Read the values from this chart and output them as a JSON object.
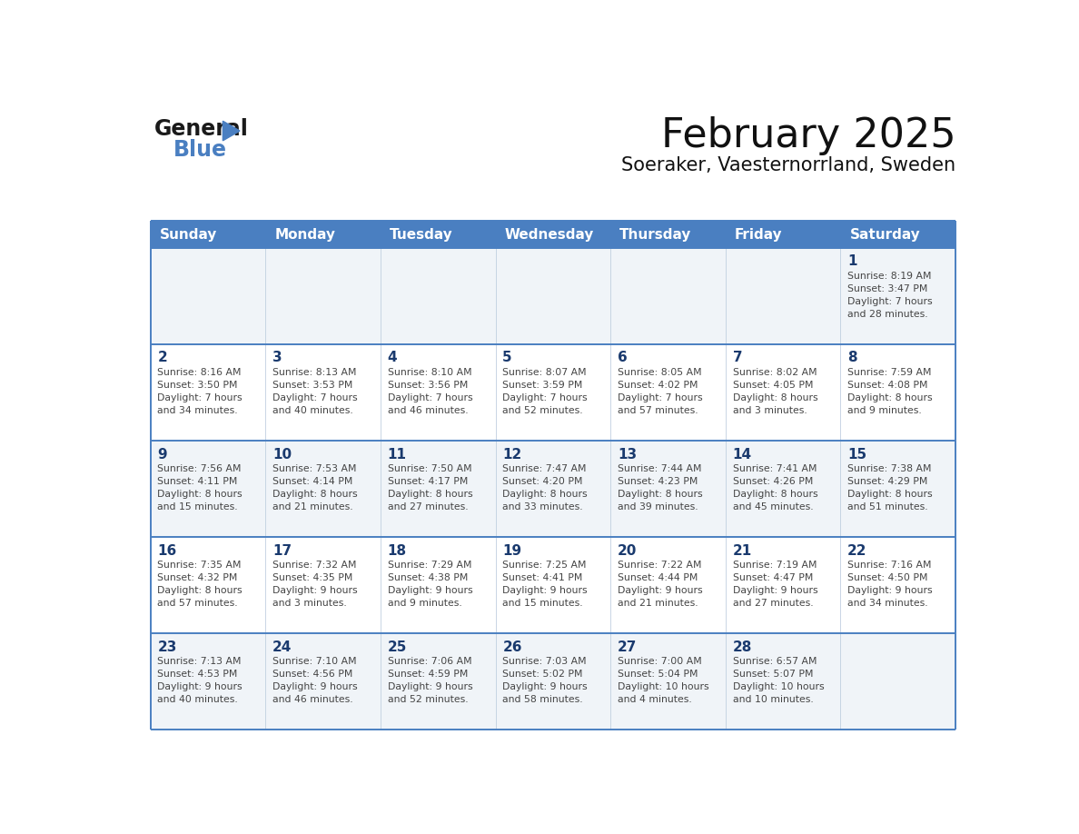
{
  "title": "February 2025",
  "subtitle": "Soeraker, Vaesternorrland, Sweden",
  "days_of_week": [
    "Sunday",
    "Monday",
    "Tuesday",
    "Wednesday",
    "Thursday",
    "Friday",
    "Saturday"
  ],
  "header_bg": "#4a7fc1",
  "header_text": "#FFFFFF",
  "row_bg_light": "#f0f4f8",
  "row_bg_white": "#FFFFFF",
  "text_color": "#444444",
  "day_number_color": "#1a3a6e",
  "border_color": "#4a7fc1",
  "cell_divider_color": "#c0cfe0",
  "logo_color_general": "#1a1a1a",
  "logo_color_blue": "#4a7fc1",
  "logo_triangle_color": "#4a7fc1",
  "calendar": [
    [
      {
        "day": null,
        "info": ""
      },
      {
        "day": null,
        "info": ""
      },
      {
        "day": null,
        "info": ""
      },
      {
        "day": null,
        "info": ""
      },
      {
        "day": null,
        "info": ""
      },
      {
        "day": null,
        "info": ""
      },
      {
        "day": 1,
        "info": "Sunrise: 8:19 AM\nSunset: 3:47 PM\nDaylight: 7 hours\nand 28 minutes."
      }
    ],
    [
      {
        "day": 2,
        "info": "Sunrise: 8:16 AM\nSunset: 3:50 PM\nDaylight: 7 hours\nand 34 minutes."
      },
      {
        "day": 3,
        "info": "Sunrise: 8:13 AM\nSunset: 3:53 PM\nDaylight: 7 hours\nand 40 minutes."
      },
      {
        "day": 4,
        "info": "Sunrise: 8:10 AM\nSunset: 3:56 PM\nDaylight: 7 hours\nand 46 minutes."
      },
      {
        "day": 5,
        "info": "Sunrise: 8:07 AM\nSunset: 3:59 PM\nDaylight: 7 hours\nand 52 minutes."
      },
      {
        "day": 6,
        "info": "Sunrise: 8:05 AM\nSunset: 4:02 PM\nDaylight: 7 hours\nand 57 minutes."
      },
      {
        "day": 7,
        "info": "Sunrise: 8:02 AM\nSunset: 4:05 PM\nDaylight: 8 hours\nand 3 minutes."
      },
      {
        "day": 8,
        "info": "Sunrise: 7:59 AM\nSunset: 4:08 PM\nDaylight: 8 hours\nand 9 minutes."
      }
    ],
    [
      {
        "day": 9,
        "info": "Sunrise: 7:56 AM\nSunset: 4:11 PM\nDaylight: 8 hours\nand 15 minutes."
      },
      {
        "day": 10,
        "info": "Sunrise: 7:53 AM\nSunset: 4:14 PM\nDaylight: 8 hours\nand 21 minutes."
      },
      {
        "day": 11,
        "info": "Sunrise: 7:50 AM\nSunset: 4:17 PM\nDaylight: 8 hours\nand 27 minutes."
      },
      {
        "day": 12,
        "info": "Sunrise: 7:47 AM\nSunset: 4:20 PM\nDaylight: 8 hours\nand 33 minutes."
      },
      {
        "day": 13,
        "info": "Sunrise: 7:44 AM\nSunset: 4:23 PM\nDaylight: 8 hours\nand 39 minutes."
      },
      {
        "day": 14,
        "info": "Sunrise: 7:41 AM\nSunset: 4:26 PM\nDaylight: 8 hours\nand 45 minutes."
      },
      {
        "day": 15,
        "info": "Sunrise: 7:38 AM\nSunset: 4:29 PM\nDaylight: 8 hours\nand 51 minutes."
      }
    ],
    [
      {
        "day": 16,
        "info": "Sunrise: 7:35 AM\nSunset: 4:32 PM\nDaylight: 8 hours\nand 57 minutes."
      },
      {
        "day": 17,
        "info": "Sunrise: 7:32 AM\nSunset: 4:35 PM\nDaylight: 9 hours\nand 3 minutes."
      },
      {
        "day": 18,
        "info": "Sunrise: 7:29 AM\nSunset: 4:38 PM\nDaylight: 9 hours\nand 9 minutes."
      },
      {
        "day": 19,
        "info": "Sunrise: 7:25 AM\nSunset: 4:41 PM\nDaylight: 9 hours\nand 15 minutes."
      },
      {
        "day": 20,
        "info": "Sunrise: 7:22 AM\nSunset: 4:44 PM\nDaylight: 9 hours\nand 21 minutes."
      },
      {
        "day": 21,
        "info": "Sunrise: 7:19 AM\nSunset: 4:47 PM\nDaylight: 9 hours\nand 27 minutes."
      },
      {
        "day": 22,
        "info": "Sunrise: 7:16 AM\nSunset: 4:50 PM\nDaylight: 9 hours\nand 34 minutes."
      }
    ],
    [
      {
        "day": 23,
        "info": "Sunrise: 7:13 AM\nSunset: 4:53 PM\nDaylight: 9 hours\nand 40 minutes."
      },
      {
        "day": 24,
        "info": "Sunrise: 7:10 AM\nSunset: 4:56 PM\nDaylight: 9 hours\nand 46 minutes."
      },
      {
        "day": 25,
        "info": "Sunrise: 7:06 AM\nSunset: 4:59 PM\nDaylight: 9 hours\nand 52 minutes."
      },
      {
        "day": 26,
        "info": "Sunrise: 7:03 AM\nSunset: 5:02 PM\nDaylight: 9 hours\nand 58 minutes."
      },
      {
        "day": 27,
        "info": "Sunrise: 7:00 AM\nSunset: 5:04 PM\nDaylight: 10 hours\nand 4 minutes."
      },
      {
        "day": 28,
        "info": "Sunrise: 6:57 AM\nSunset: 5:07 PM\nDaylight: 10 hours\nand 10 minutes."
      },
      {
        "day": null,
        "info": ""
      }
    ]
  ]
}
